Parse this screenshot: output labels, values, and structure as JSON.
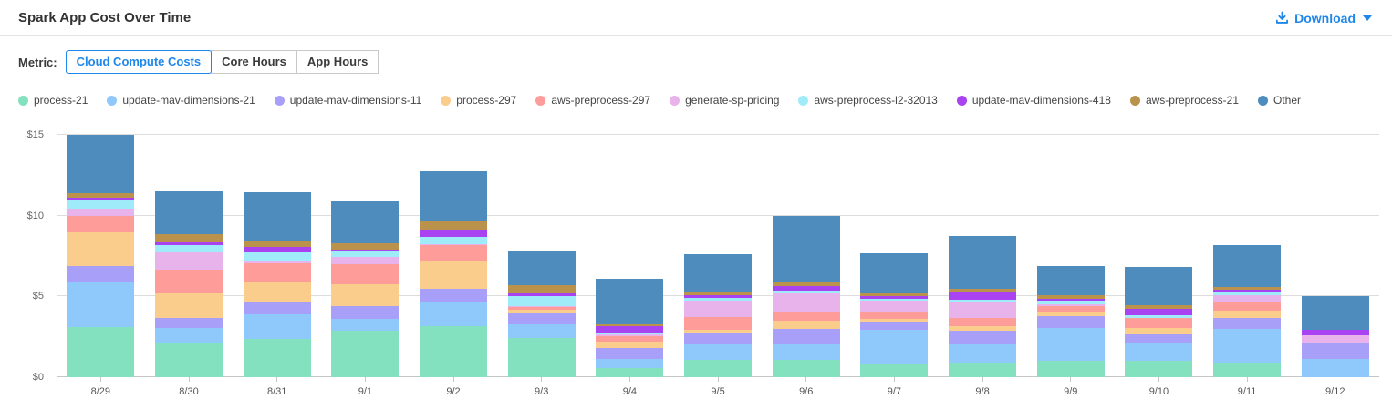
{
  "header": {
    "title": "Spark App Cost Over Time",
    "download_label": "Download"
  },
  "metric": {
    "label": "Metric:",
    "selected": "Cloud Compute Costs",
    "options": [
      {
        "label": "Cloud Compute Costs"
      },
      {
        "label": "Core Hours"
      },
      {
        "label": "App Hours"
      }
    ]
  },
  "colors": {
    "accent_blue": "#1f87ea",
    "title_text": "#333333",
    "axis_text": "#666666",
    "gridline": "#dddddd"
  },
  "chart_data": {
    "type": "bar",
    "stacked": true,
    "title": "Spark App Cost Over Time",
    "xlabel": "",
    "ylabel": "",
    "y_tick_labels": [
      "$0",
      "$5",
      "$10",
      "$15"
    ],
    "y_tick_values": [
      0,
      5,
      10,
      15
    ],
    "ylim": [
      0,
      15
    ],
    "grid": true,
    "legend_position": "top",
    "categories": [
      "8/29",
      "8/30",
      "8/31",
      "9/1",
      "9/2",
      "9/3",
      "9/4",
      "9/5",
      "9/6",
      "9/7",
      "9/8",
      "9/9",
      "9/10",
      "9/11",
      "9/12"
    ],
    "series": [
      {
        "name": "process-21",
        "color": "#84E1C0",
        "values": [
          3.1,
          2.16,
          2.35,
          2.88,
          3.15,
          2.45,
          0.56,
          1.05,
          1.1,
          0.84,
          0.9,
          1.03,
          0.99,
          0.9,
          0
        ]
      },
      {
        "name": "update-mav-dimensions-21",
        "color": "#8FC8FB",
        "values": [
          2.75,
          0.86,
          1.52,
          0.72,
          1.55,
          0.8,
          0.56,
          1.0,
          0.93,
          2.11,
          1.12,
          2.01,
          1.16,
          2.11,
          1.14
        ]
      },
      {
        "name": "update-mav-dimensions-11",
        "color": "#A8A0F8",
        "values": [
          1.03,
          0.64,
          0.81,
          0.79,
          0.75,
          0.72,
          0.66,
          0.65,
          0.97,
          0.47,
          0.88,
          0.75,
          0.52,
          0.63,
          0.97
        ]
      },
      {
        "name": "process-297",
        "color": "#FACD8D",
        "values": [
          2.07,
          1.52,
          1.2,
          1.37,
          1.7,
          0.22,
          0.41,
          0.25,
          0.49,
          0.19,
          0.28,
          0.28,
          0.37,
          0.49,
          0
        ]
      },
      {
        "name": "aws-preprocess-297",
        "color": "#FD9C99",
        "values": [
          1.04,
          1.45,
          1.17,
          1.26,
          1.05,
          0.15,
          0.34,
          0.8,
          0.5,
          0.47,
          0.47,
          0.32,
          0.65,
          0.56,
          0
        ]
      },
      {
        "name": "generate-sp-pricing",
        "color": "#E8B3EB",
        "values": [
          0.42,
          1.09,
          0.19,
          0.41,
          0.05,
          0.05,
          0.11,
          1.0,
          1.21,
          0.65,
          0.99,
          0.11,
          0,
          0.41,
          0.47
        ]
      },
      {
        "name": "aws-preprocess-l2-32013",
        "color": "#A0EBFA",
        "values": [
          0.53,
          0.45,
          0.5,
          0.34,
          0.45,
          0.62,
          0.11,
          0.18,
          0.15,
          0.13,
          0.17,
          0.22,
          0.13,
          0.19,
          0
        ]
      },
      {
        "name": "update-mav-dimensions-418",
        "color": "#A942F1",
        "values": [
          0.19,
          0.19,
          0.3,
          0.15,
          0.4,
          0.18,
          0.41,
          0.15,
          0.32,
          0.15,
          0.45,
          0.15,
          0.41,
          0.1,
          0.37
        ]
      },
      {
        "name": "aws-preprocess-21",
        "color": "#BA924B",
        "values": [
          0.26,
          0.49,
          0.34,
          0.38,
          0.55,
          0.49,
          0.11,
          0.18,
          0.24,
          0.19,
          0.22,
          0.19,
          0.22,
          0.2,
          0
        ]
      },
      {
        "name": "Other",
        "color": "#4E8CBD",
        "values": [
          3.63,
          2.63,
          3.1,
          2.58,
          3.1,
          2.1,
          2.85,
          2.35,
          4.09,
          2.48,
          3.28,
          1.85,
          2.35,
          2.61,
          2.09
        ]
      }
    ]
  }
}
